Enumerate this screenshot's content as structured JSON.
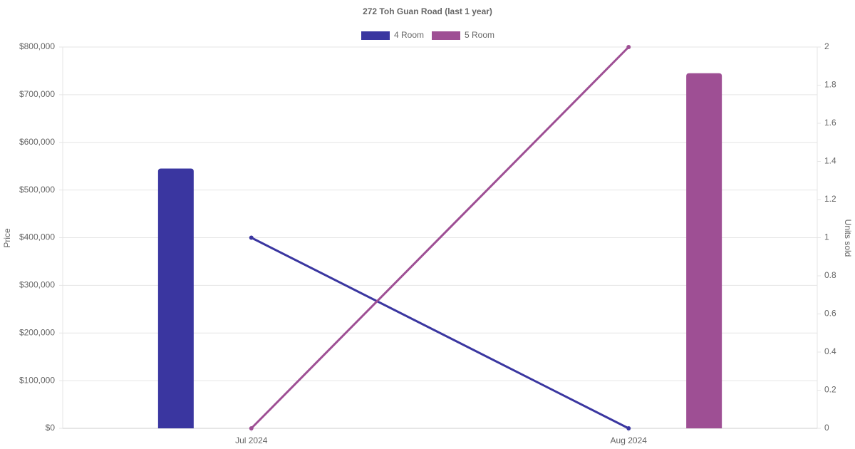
{
  "chart_data": {
    "type": "bar-line",
    "title": "272 Toh Guan Road (last 1 year)",
    "categories": [
      "Jul 2024",
      "Aug 2024"
    ],
    "y_label": "Price",
    "y2_label": "Units sold",
    "ylim": [
      0,
      800000
    ],
    "yticks": [
      {
        "value": 0,
        "label": "$0"
      },
      {
        "value": 100000,
        "label": "$100,000"
      },
      {
        "value": 200000,
        "label": "$200,000"
      },
      {
        "value": 300000,
        "label": "$300,000"
      },
      {
        "value": 400000,
        "label": "$400,000"
      },
      {
        "value": 500000,
        "label": "$500,000"
      },
      {
        "value": 600000,
        "label": "$600,000"
      },
      {
        "value": 700000,
        "label": "$700,000"
      },
      {
        "value": 800000,
        "label": "$800,000"
      }
    ],
    "y2lim": [
      0,
      2
    ],
    "y2ticks": [
      0,
      0.2,
      0.4,
      0.6,
      0.8,
      1,
      1.2,
      1.4,
      1.6,
      1.8,
      2
    ],
    "grid": true,
    "legend": "top",
    "series": [
      {
        "name": "4 Room",
        "color": "#3a36a0",
        "kind": "bar",
        "values": [
          545000,
          null
        ]
      },
      {
        "name": "5 Room",
        "color": "#9e4f94",
        "kind": "bar",
        "values": [
          null,
          745000
        ]
      },
      {
        "name": "4 Room",
        "color": "#3a36a0",
        "kind": "line",
        "axis": "y2",
        "values": [
          1,
          0
        ]
      },
      {
        "name": "5 Room",
        "color": "#9e4f94",
        "kind": "line",
        "axis": "y2",
        "values": [
          0,
          2
        ]
      }
    ]
  }
}
